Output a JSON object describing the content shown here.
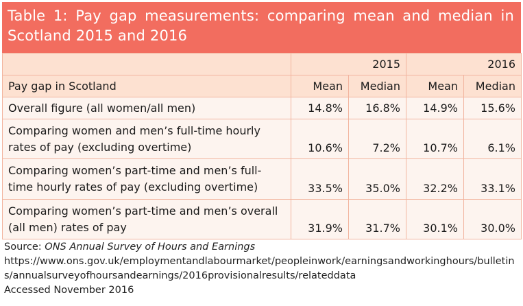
{
  "title": "Table 1: Pay gap measurements: comparing mean and median in Scotland 2015 and 2016",
  "years": [
    "2015",
    "2016"
  ],
  "header": {
    "row_label": "Pay gap in Scotland",
    "mean": "Mean",
    "median": "Median"
  },
  "rows": [
    {
      "label": "Overall figure (all women/all men)",
      "mean_2015": "14.8%",
      "median_2015": "16.8%",
      "mean_2016": "14.9%",
      "median_2016": "15.6%"
    },
    {
      "label": "Comparing women and men’s full-time hourly rates of pay (excluding overtime)",
      "mean_2015": "10.6%",
      "median_2015": "7.2%",
      "mean_2016": "10.7%",
      "median_2016": "6.1%"
    },
    {
      "label": "Comparing women’s part-time and men’s full-time hourly rates of pay (excluding overtime)",
      "mean_2015": "33.5%",
      "median_2015": "35.0%",
      "mean_2016": "32.2%",
      "median_2016": "33.1%"
    },
    {
      "label": "Comparing women’s part-time and men’s overall (all men) rates of pay",
      "mean_2015": "31.9%",
      "median_2015": "31.7%",
      "mean_2016": "30.1%",
      "median_2016": "30.0%"
    }
  ],
  "source": {
    "prefix": "Source: ",
    "name": "ONS Annual Survey of Hours and Earnings",
    "url": "https://www.ons.gov.uk/employmentandlabourmarket/peopleinwork/earningsandworkinghours/bulletins/annualsurveyofhoursandearnings/2016provisionalresults/relateddata",
    "accessed": "Accessed November 2016"
  },
  "colors": {
    "title_bg": "#f26d5f",
    "header_bg": "#fde1d1",
    "body_bg": "#fdf4ef",
    "border": "#f2b49e"
  }
}
